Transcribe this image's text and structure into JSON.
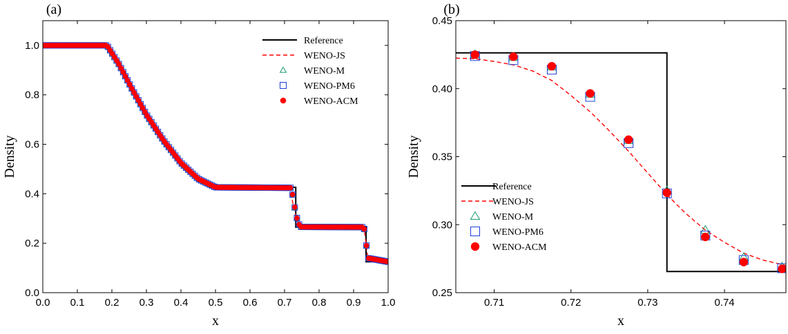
{
  "chart_data": [
    {
      "type": "line",
      "panel_label": "(a)",
      "xlabel": "x",
      "ylabel": "Density",
      "xlim": [
        0.0,
        1.0
      ],
      "ylim": [
        0.0,
        1.1
      ],
      "xticks": [
        "0.0",
        "0.1",
        "0.2",
        "0.3",
        "0.4",
        "0.5",
        "0.6",
        "0.7",
        "0.8",
        "0.9",
        "1.0"
      ],
      "yticks": [
        "0.0",
        "0.2",
        "0.4",
        "0.6",
        "0.8",
        "1.0"
      ],
      "legend_position": "top-right",
      "series": [
        {
          "name": "Reference",
          "style": "solid-line",
          "color": "#000000",
          "x": [
            0.0,
            0.186,
            0.22,
            0.26,
            0.3,
            0.35,
            0.4,
            0.45,
            0.5,
            0.7325,
            0.7325,
            0.936,
            0.936,
            1.0
          ],
          "y": [
            1.0,
            1.0,
            0.925,
            0.82,
            0.72,
            0.615,
            0.525,
            0.46,
            0.426,
            0.426,
            0.265,
            0.265,
            0.125,
            0.125
          ]
        },
        {
          "name": "WENO-JS",
          "style": "dashed-line",
          "color": "#ff0000",
          "x": [
            0.0,
            0.186,
            0.22,
            0.26,
            0.3,
            0.35,
            0.4,
            0.45,
            0.5,
            0.71,
            0.72,
            0.73,
            0.74,
            0.745,
            0.93,
            0.936,
            0.942,
            1.0
          ],
          "y": [
            1.0,
            1.0,
            0.925,
            0.82,
            0.72,
            0.615,
            0.525,
            0.46,
            0.426,
            0.423,
            0.39,
            0.325,
            0.28,
            0.268,
            0.265,
            0.2,
            0.13,
            0.125
          ]
        },
        {
          "name": "WENO-M",
          "style": "triangle-marker",
          "color": "#1a9a6c",
          "x": [
            0.0,
            0.186,
            0.22,
            0.26,
            0.3,
            0.35,
            0.4,
            0.45,
            0.5,
            0.72,
            0.7275,
            0.7325,
            0.7375,
            0.745,
            0.93,
            0.936,
            0.94,
            1.0
          ],
          "y": [
            1.0,
            1.0,
            0.925,
            0.82,
            0.72,
            0.615,
            0.525,
            0.46,
            0.426,
            0.424,
            0.36,
            0.323,
            0.292,
            0.266,
            0.265,
            0.21,
            0.14,
            0.125
          ]
        },
        {
          "name": "WENO-PM6",
          "style": "square-marker",
          "color": "#1c3fd6",
          "x": [
            0.0,
            0.186,
            0.22,
            0.26,
            0.3,
            0.35,
            0.4,
            0.45,
            0.5,
            0.72,
            0.7275,
            0.7325,
            0.7375,
            0.745,
            0.93,
            0.936,
            0.94,
            1.0
          ],
          "y": [
            1.0,
            1.0,
            0.925,
            0.82,
            0.72,
            0.615,
            0.525,
            0.46,
            0.426,
            0.424,
            0.36,
            0.323,
            0.292,
            0.266,
            0.265,
            0.21,
            0.14,
            0.125
          ]
        },
        {
          "name": "WENO-ACM",
          "style": "filled-circle-marker",
          "color": "#ff0000",
          "x": [
            0.0,
            0.186,
            0.22,
            0.26,
            0.3,
            0.35,
            0.4,
            0.45,
            0.5,
            0.72,
            0.7275,
            0.7325,
            0.7375,
            0.745,
            0.93,
            0.936,
            0.94,
            1.0
          ],
          "y": [
            1.0,
            1.0,
            0.925,
            0.82,
            0.72,
            0.615,
            0.525,
            0.46,
            0.426,
            0.424,
            0.362,
            0.323,
            0.291,
            0.266,
            0.265,
            0.21,
            0.14,
            0.125
          ]
        }
      ]
    },
    {
      "type": "line",
      "panel_label": "(b)",
      "xlabel": "x",
      "ylabel": "Density",
      "xlim": [
        0.705,
        0.748
      ],
      "ylim": [
        0.25,
        0.45
      ],
      "xticks": [
        "0.71",
        "0.72",
        "0.73",
        "0.74"
      ],
      "yticks": [
        "0.25",
        "0.30",
        "0.35",
        "0.40",
        "0.45"
      ],
      "legend_position": "bottom-left",
      "series": [
        {
          "name": "Reference",
          "style": "solid-line",
          "color": "#000000",
          "x": [
            0.705,
            0.7325,
            0.7325,
            0.748
          ],
          "y": [
            0.4263,
            0.4263,
            0.2656,
            0.2656
          ]
        },
        {
          "name": "WENO-JS",
          "style": "dashed-line",
          "color": "#ff0000",
          "x": [
            0.705,
            0.7075,
            0.71,
            0.7125,
            0.715,
            0.7175,
            0.72,
            0.7225,
            0.725,
            0.7275,
            0.73,
            0.7325,
            0.735,
            0.7375,
            0.74,
            0.7425,
            0.745,
            0.748
          ],
          "y": [
            0.4225,
            0.422,
            0.42,
            0.4175,
            0.413,
            0.406,
            0.395,
            0.383,
            0.369,
            0.354,
            0.338,
            0.322,
            0.308,
            0.296,
            0.287,
            0.279,
            0.274,
            0.27
          ]
        },
        {
          "name": "WENO-M",
          "style": "triangle-marker",
          "color": "#1a9a6c",
          "x": [
            0.7075,
            0.7125,
            0.7175,
            0.7225,
            0.7275,
            0.7325,
            0.7375,
            0.7425,
            0.7475
          ],
          "y": [
            0.425,
            0.423,
            0.416,
            0.396,
            0.362,
            0.325,
            0.296,
            0.276,
            0.269
          ]
        },
        {
          "name": "WENO-PM6",
          "style": "square-marker",
          "color": "#1c3fd6",
          "x": [
            0.7075,
            0.7125,
            0.7175,
            0.7225,
            0.7275,
            0.7325,
            0.7375,
            0.7425,
            0.7475
          ],
          "y": [
            0.424,
            0.421,
            0.414,
            0.394,
            0.36,
            0.323,
            0.292,
            0.274,
            0.268
          ]
        },
        {
          "name": "WENO-ACM",
          "style": "filled-circle-marker",
          "color": "#ff0000",
          "x": [
            0.7075,
            0.7125,
            0.7175,
            0.7225,
            0.7275,
            0.7325,
            0.7375,
            0.7425,
            0.7475
          ],
          "y": [
            0.425,
            0.4235,
            0.4165,
            0.3965,
            0.3625,
            0.3235,
            0.291,
            0.2725,
            0.2675
          ]
        }
      ]
    }
  ]
}
